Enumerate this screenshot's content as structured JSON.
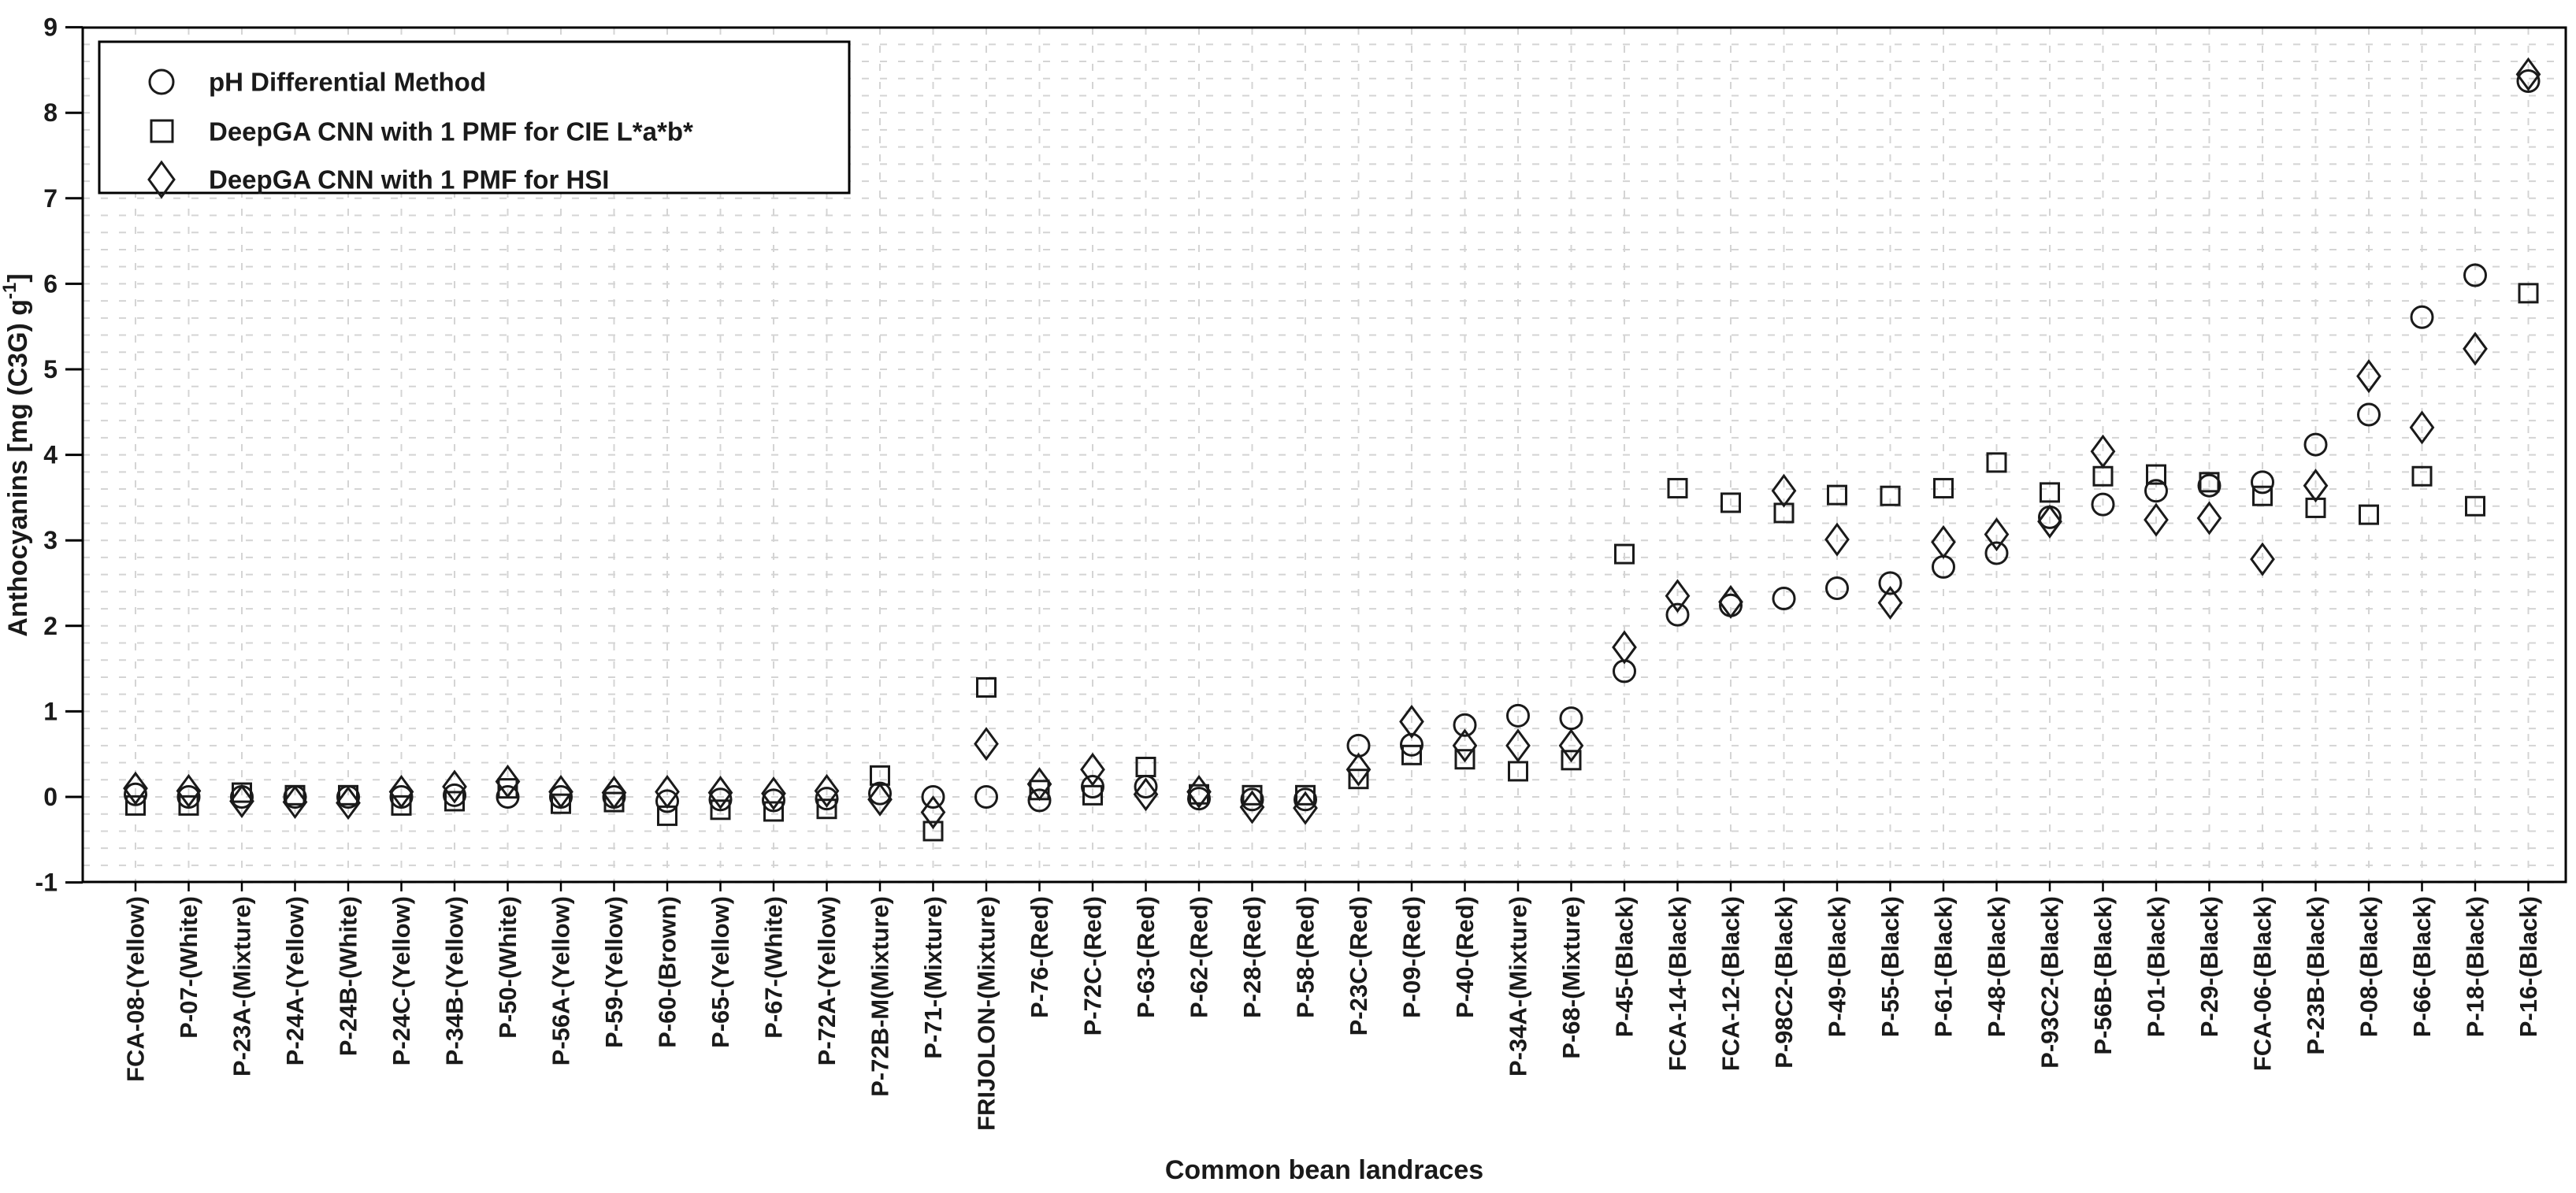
{
  "chart_data": {
    "type": "scatter",
    "title": "",
    "xlabel": "Common bean landraces",
    "ylabel": "Anthocyanins [mg (C3G) g-1]",
    "ylabel_main": "Anthocyanins [mg (C3G) g",
    "ylabel_sup": "-1",
    "ylabel_close": "]",
    "ylim": [
      -1,
      9
    ],
    "y_major_step": 1,
    "y_minor_step": 0.2,
    "grid": "on",
    "legend_position": "top-left",
    "y_ticks": [
      9,
      8,
      7,
      6,
      5,
      4,
      3,
      2,
      1,
      0,
      -1
    ],
    "categories": [
      "FCA-08-(Yellow)",
      "P-07-(White)",
      "P-23A-(Mixture)",
      "P-24A-(Yellow)",
      "P-24B-(White)",
      "P-24C-(Yellow)",
      "P-34B-(Yellow)",
      "P-50-(White)",
      "P-56A-(Yellow)",
      "P-59-(Yellow)",
      "P-60-(Brown)",
      "P-65-(Yellow)",
      "P-67-(White)",
      "P-72A-(Yellow)",
      "P-72B-M(Mixture)",
      "P-71-(Mixture)",
      "FRIJOLON-(Mixture)",
      "P-76-(Red)",
      "P-72C-(Red)",
      "P-63-(Red)",
      "P-62-(Red)",
      "P-28-(Red)",
      "P-58-(Red)",
      "P-23C-(Red)",
      "P-09-(Red)",
      "P-40-(Red)",
      "P-34A-(Mixture)",
      "P-68-(Mixture)",
      "P-45-(Black)",
      "FCA-14-(Black)",
      "FCA-12-(Black)",
      "P-98C2-(Black)",
      "P-49-(Black)",
      "P-55-(Black)",
      "P-61-(Black)",
      "P-48-(Black)",
      "P-93C2-(Black)",
      "P-56B-(Black)",
      "P-01-(Black)",
      "P-29-(Black)",
      "FCA-06-(Black)",
      "P-23B-(Black)",
      "P-08-(Black)",
      "P-66-(Black)",
      "P-18-(Black)",
      "P-16-(Black)"
    ],
    "series": [
      {
        "name": "pH Differential Method",
        "marker": "circle",
        "values": [
          0.03,
          0.0,
          0.0,
          0.0,
          0.0,
          0.0,
          0.02,
          0.0,
          0.0,
          0.0,
          -0.05,
          -0.03,
          -0.04,
          -0.02,
          0.04,
          0.0,
          0.0,
          -0.04,
          0.12,
          0.12,
          -0.02,
          -0.03,
          -0.03,
          0.6,
          0.61,
          0.84,
          0.95,
          0.92,
          1.47,
          2.13,
          2.24,
          2.32,
          2.44,
          2.5,
          2.69,
          2.85,
          3.27,
          3.42,
          3.58,
          3.64,
          3.68,
          4.12,
          4.47,
          5.61,
          6.1,
          8.37
        ]
      },
      {
        "name": "DeepGA CNN with 1 PMF for CIE L*a*b*",
        "marker": "square",
        "values": [
          -0.1,
          -0.1,
          0.05,
          0.02,
          0.02,
          -0.1,
          -0.05,
          0.1,
          -0.08,
          -0.06,
          -0.22,
          -0.15,
          -0.17,
          -0.14,
          0.25,
          -0.4,
          1.28,
          0.08,
          0.02,
          0.35,
          0.03,
          0.02,
          0.02,
          0.21,
          0.49,
          0.44,
          0.3,
          0.43,
          2.84,
          3.61,
          3.44,
          3.32,
          3.53,
          3.52,
          3.61,
          3.91,
          3.56,
          3.75,
          3.77,
          3.68,
          3.52,
          3.38,
          3.3,
          3.75,
          3.4,
          5.89
        ]
      },
      {
        "name": "DeepGA CNN with 1 PMF for HSI",
        "marker": "diamond",
        "values": [
          0.1,
          0.07,
          -0.05,
          -0.06,
          -0.07,
          0.06,
          0.12,
          0.18,
          0.06,
          0.05,
          0.06,
          0.05,
          0.04,
          0.07,
          -0.03,
          -0.18,
          0.62,
          0.15,
          0.32,
          0.03,
          0.06,
          -0.12,
          -0.13,
          0.32,
          0.88,
          0.6,
          0.6,
          0.6,
          1.75,
          2.35,
          2.28,
          3.58,
          3.01,
          2.27,
          2.98,
          3.07,
          3.22,
          4.04,
          3.24,
          3.26,
          2.78,
          3.64,
          4.92,
          4.32,
          5.24,
          8.45
        ]
      }
    ],
    "colors": {
      "marker_stroke": "#1a1a1a",
      "axis": "#000000",
      "grid": "#d4d4d4",
      "background": "#ffffff",
      "text": "#1a1a1a"
    }
  }
}
